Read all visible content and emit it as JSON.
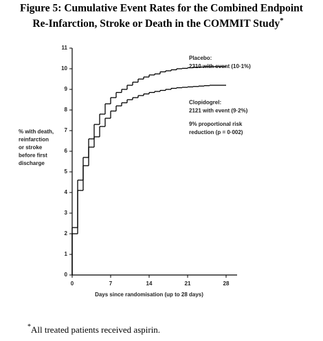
{
  "chart_data": {
    "type": "step",
    "title_lines": [
      "Figure 5: Cumulative Event Rates for the Combined Endpoint",
      "Re-Infarction, Stroke or Death in the COMMIT Study"
    ],
    "title_marker": "*",
    "y_label_lines": [
      "% with death,",
      "reinfarction",
      "or stroke",
      "before first",
      "discharge"
    ],
    "x_label": "Days since randomisation (up to 28 days)",
    "x": [
      0,
      1,
      2,
      3,
      4,
      5,
      6,
      7,
      8,
      9,
      10,
      11,
      12,
      13,
      14,
      15,
      16,
      17,
      18,
      19,
      20,
      21,
      22,
      23,
      24,
      25,
      26,
      27
    ],
    "series": [
      {
        "name": "Placebo",
        "color": "#000000",
        "values": [
          2.3,
          4.6,
          5.7,
          6.6,
          7.3,
          7.8,
          8.3,
          8.6,
          8.85,
          9.0,
          9.2,
          9.35,
          9.5,
          9.6,
          9.7,
          9.75,
          9.85,
          9.9,
          9.95,
          10.0,
          10.02,
          10.05,
          10.07,
          10.08,
          10.1,
          10.1,
          10.1,
          10.1
        ]
      },
      {
        "name": "Clopidogrel",
        "color": "#000000",
        "values": [
          2.0,
          4.1,
          5.3,
          6.2,
          6.7,
          7.2,
          7.6,
          7.95,
          8.2,
          8.35,
          8.5,
          8.6,
          8.7,
          8.78,
          8.85,
          8.9,
          8.95,
          9.0,
          9.05,
          9.08,
          9.1,
          9.12,
          9.14,
          9.16,
          9.18,
          9.2,
          9.2,
          9.2
        ]
      }
    ],
    "annotations": [
      {
        "lines": [
          "Placebo:",
          "2310 with event (10·1%)"
        ],
        "y": 10.5
      },
      {
        "lines": [
          "Clopidogrel:",
          "2121 with event (9·2%)"
        ],
        "y": 8.35
      },
      {
        "lines": [
          "9% proportional risk",
          "reduction (p = 0·002)"
        ],
        "y": 7.3
      }
    ],
    "xlim": [
      0,
      30
    ],
    "ylim": [
      0,
      11
    ],
    "xticks": [
      0,
      7,
      14,
      21,
      28
    ],
    "yticks": [
      0,
      1,
      2,
      3,
      4,
      5,
      6,
      7,
      8,
      9,
      10,
      11
    ],
    "footnote_marker": "*",
    "footnote": "All treated patients received aspirin."
  }
}
